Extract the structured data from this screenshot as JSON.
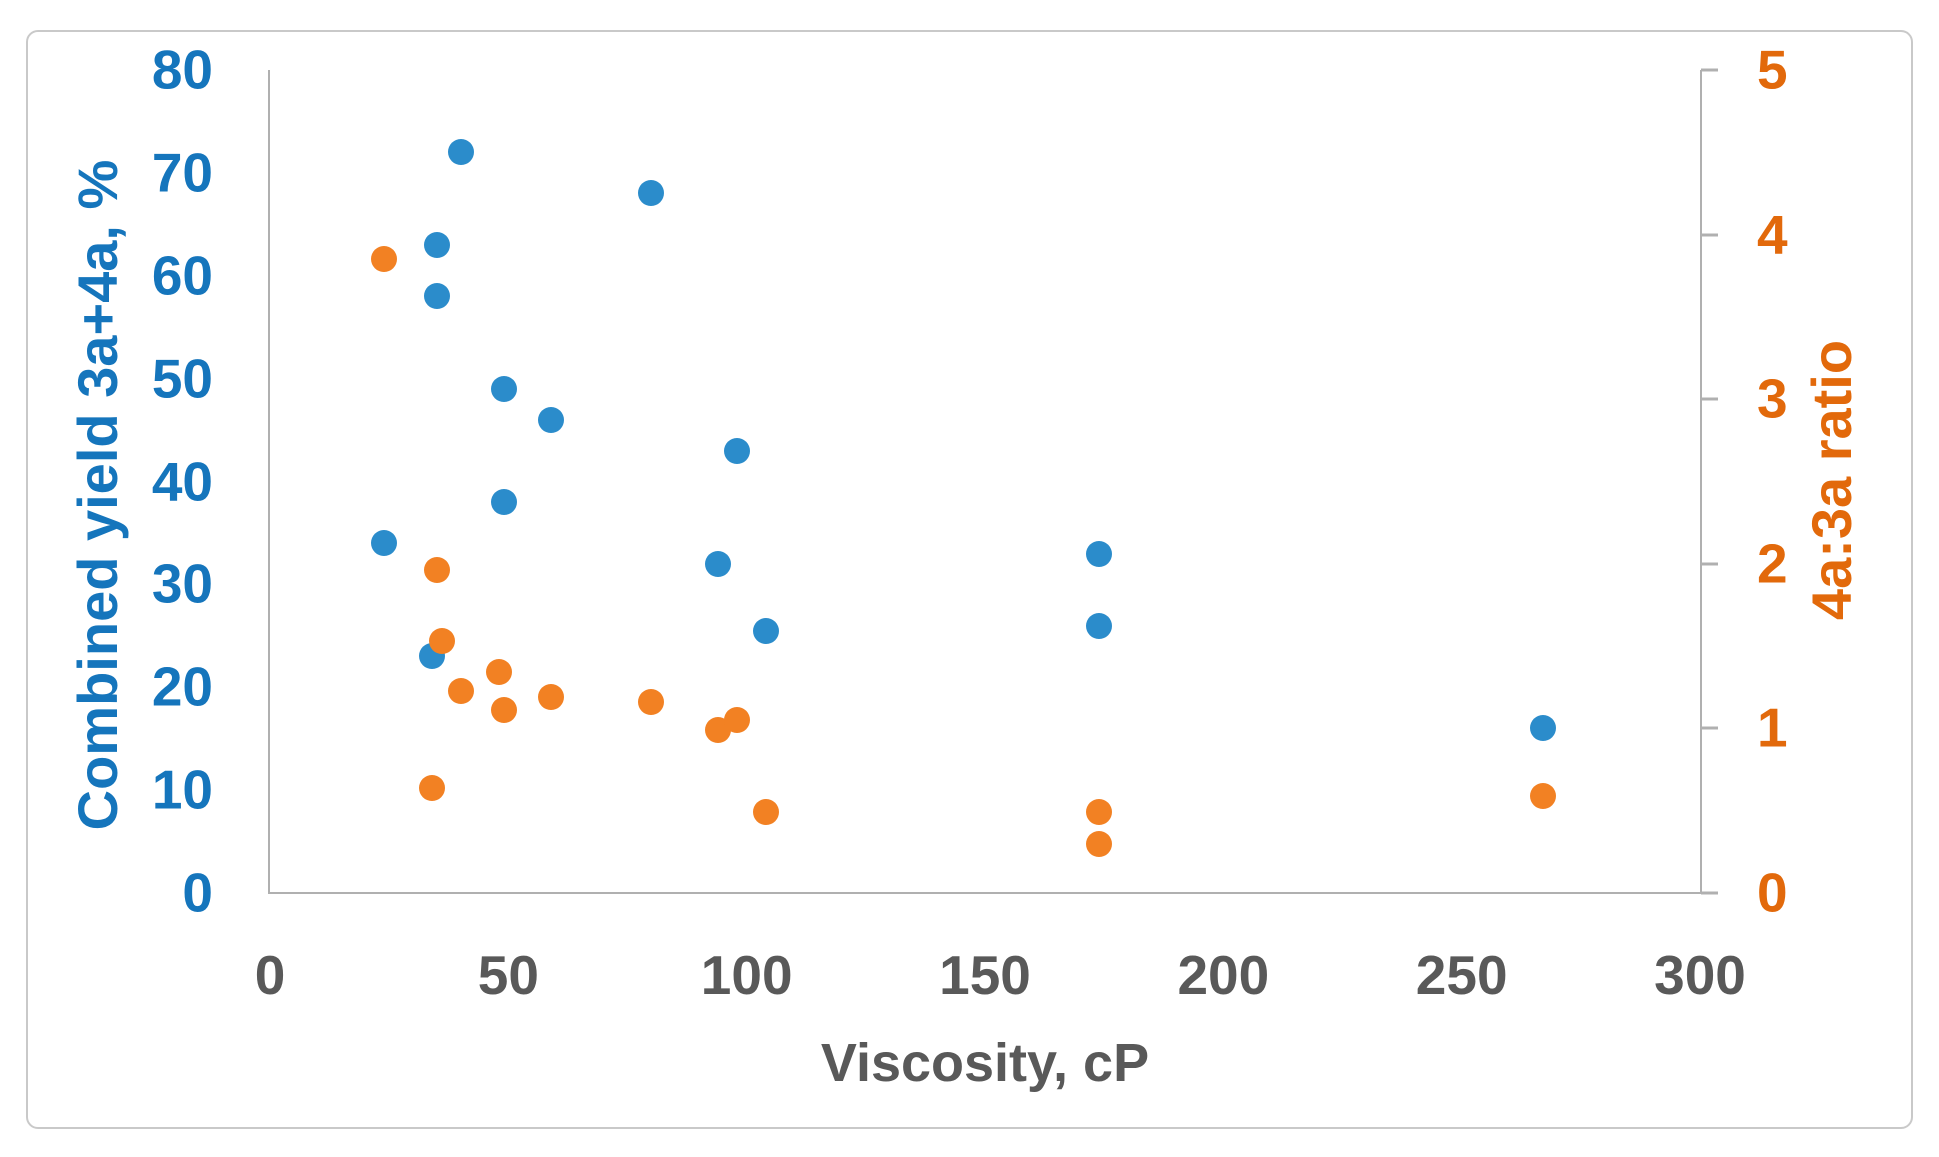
{
  "chart_data": {
    "type": "scatter",
    "title": "",
    "xlabel": "Viscosity, cP",
    "ylabel_left": "Combined yield 3a+4a, %",
    "ylabel_right": "4a:3a ratio",
    "xlim": [
      0,
      300
    ],
    "ylim_left": [
      0,
      80
    ],
    "ylim_right": [
      0,
      5
    ],
    "x_ticks": [
      0,
      50,
      100,
      150,
      200,
      250,
      300
    ],
    "y_left_ticks": [
      0,
      10,
      20,
      30,
      40,
      50,
      60,
      70,
      80
    ],
    "y_right_ticks": [
      0,
      1,
      2,
      3,
      4,
      5
    ],
    "grid": false,
    "legend_position": "none",
    "series": [
      {
        "name": "Combined yield 3a+4a (%)",
        "axis": "left",
        "color": "#2b8ccb",
        "points": [
          [
            24,
            34
          ],
          [
            34,
            23
          ],
          [
            35,
            63
          ],
          [
            35,
            58
          ],
          [
            40,
            72
          ],
          [
            49,
            49
          ],
          [
            49,
            38
          ],
          [
            59,
            46
          ],
          [
            80,
            68
          ],
          [
            94,
            32
          ],
          [
            98,
            43
          ],
          [
            104,
            25.5
          ],
          [
            174,
            33
          ],
          [
            174,
            26
          ],
          [
            267,
            16
          ]
        ]
      },
      {
        "name": "4a:3a ratio",
        "axis": "right",
        "color": "#f28123",
        "points": [
          [
            24,
            3.85
          ],
          [
            34,
            0.64
          ],
          [
            35,
            1.96
          ],
          [
            36,
            1.53
          ],
          [
            40,
            1.23
          ],
          [
            48,
            1.34
          ],
          [
            49,
            1.11
          ],
          [
            59,
            1.19
          ],
          [
            80,
            1.16
          ],
          [
            94,
            0.99
          ],
          [
            98,
            1.05
          ],
          [
            104,
            0.49
          ],
          [
            174,
            0.49
          ],
          [
            174,
            0.3
          ],
          [
            267,
            0.59
          ]
        ]
      }
    ]
  },
  "colors": {
    "left_axis_text": "#1575bc",
    "right_axis_text": "#e2690b",
    "x_axis_text": "#595959",
    "axis_line": "#b0b0b0",
    "frame_border": "#c9c9c9",
    "background": "#ffffff"
  }
}
